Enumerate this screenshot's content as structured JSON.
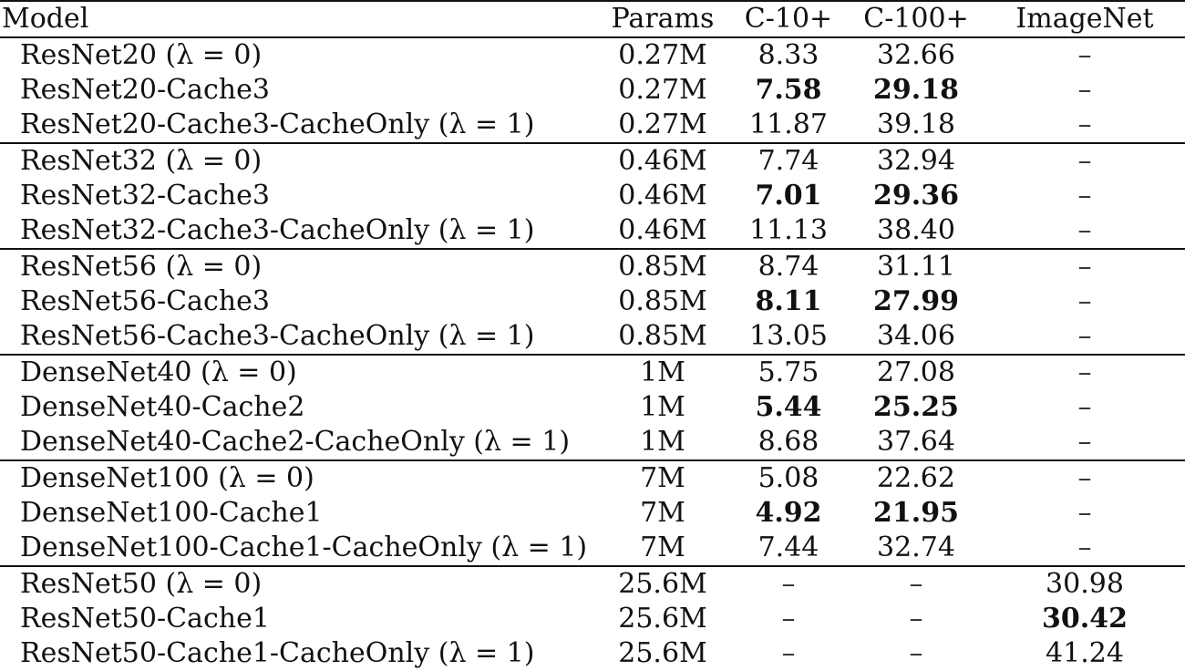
{
  "table": {
    "headers": [
      "Model",
      "Params",
      "C-10+",
      "C-100+",
      "ImageNet"
    ],
    "groups": [
      {
        "rows": [
          {
            "model": "ResNet20 (λ = 0)",
            "params": "0.27M",
            "c10": "8.33",
            "c100": "32.66",
            "imagenet": "–",
            "best": []
          },
          {
            "model": "ResNet20-Cache3",
            "params": "0.27M",
            "c10": "7.58",
            "c100": "29.18",
            "imagenet": "–",
            "best": [
              "c10",
              "c100"
            ]
          },
          {
            "model": "ResNet20-Cache3-CacheOnly (λ = 1)",
            "params": "0.27M",
            "c10": "11.87",
            "c100": "39.18",
            "imagenet": "–",
            "best": []
          }
        ]
      },
      {
        "rows": [
          {
            "model": "ResNet32 (λ = 0)",
            "params": "0.46M",
            "c10": "7.74",
            "c100": "32.94",
            "imagenet": "–",
            "best": []
          },
          {
            "model": "ResNet32-Cache3",
            "params": "0.46M",
            "c10": "7.01",
            "c100": "29.36",
            "imagenet": "–",
            "best": [
              "c10",
              "c100"
            ]
          },
          {
            "model": "ResNet32-Cache3-CacheOnly (λ = 1)",
            "params": "0.46M",
            "c10": "11.13",
            "c100": "38.40",
            "imagenet": "–",
            "best": []
          }
        ]
      },
      {
        "rows": [
          {
            "model": "ResNet56 (λ = 0)",
            "params": "0.85M",
            "c10": "8.74",
            "c100": "31.11",
            "imagenet": "–",
            "best": []
          },
          {
            "model": "ResNet56-Cache3",
            "params": "0.85M",
            "c10": "8.11",
            "c100": "27.99",
            "imagenet": "–",
            "best": [
              "c10",
              "c100"
            ]
          },
          {
            "model": "ResNet56-Cache3-CacheOnly (λ = 1)",
            "params": "0.85M",
            "c10": "13.05",
            "c100": "34.06",
            "imagenet": "–",
            "best": []
          }
        ]
      },
      {
        "rows": [
          {
            "model": "DenseNet40 (λ = 0)",
            "params": "1M",
            "c10": "5.75",
            "c100": "27.08",
            "imagenet": "–",
            "best": []
          },
          {
            "model": "DenseNet40-Cache2",
            "params": "1M",
            "c10": "5.44",
            "c100": "25.25",
            "imagenet": "–",
            "best": [
              "c10",
              "c100"
            ]
          },
          {
            "model": "DenseNet40-Cache2-CacheOnly (λ = 1)",
            "params": "1M",
            "c10": "8.68",
            "c100": "37.64",
            "imagenet": "–",
            "best": []
          }
        ]
      },
      {
        "rows": [
          {
            "model": "DenseNet100 (λ = 0)",
            "params": "7M",
            "c10": "5.08",
            "c100": "22.62",
            "imagenet": "–",
            "best": []
          },
          {
            "model": "DenseNet100-Cache1",
            "params": "7M",
            "c10": "4.92",
            "c100": "21.95",
            "imagenet": "–",
            "best": [
              "c10",
              "c100"
            ]
          },
          {
            "model": "DenseNet100-Cache1-CacheOnly (λ = 1)",
            "params": "7M",
            "c10": "7.44",
            "c100": "32.74",
            "imagenet": "–",
            "best": []
          }
        ]
      },
      {
        "rows": [
          {
            "model": "ResNet50 (λ = 0)",
            "params": "25.6M",
            "c10": "–",
            "c100": "–",
            "imagenet": "30.98",
            "best": []
          },
          {
            "model": "ResNet50-Cache1",
            "params": "25.6M",
            "c10": "–",
            "c100": "–",
            "imagenet": "30.42",
            "best": [
              "imagenet"
            ]
          },
          {
            "model": "ResNet50-Cache1-CacheOnly (λ = 1)",
            "params": "25.6M",
            "c10": "–",
            "c100": "–",
            "imagenet": "41.24",
            "best": []
          }
        ]
      }
    ]
  }
}
